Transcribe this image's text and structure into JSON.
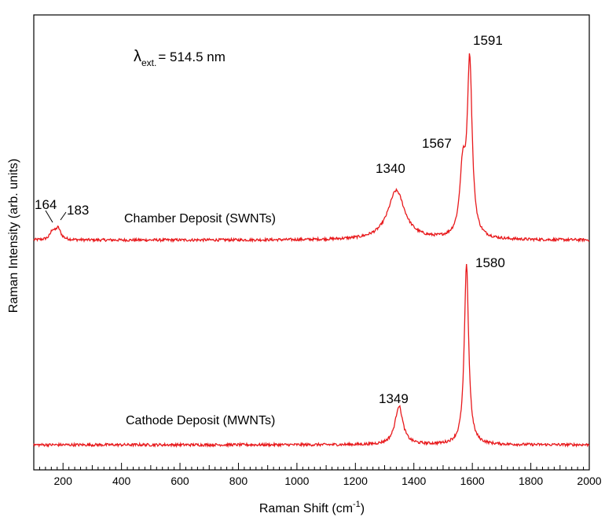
{
  "chart_data": {
    "type": "line",
    "xlabel_main": "Raman Shift (cm",
    "xlabel_sup": "-1",
    "xlabel_end": ")",
    "ylabel": "Raman Intensity (arb. units)",
    "xlim": [
      100,
      2000
    ],
    "ylim": [
      0,
      1
    ],
    "x_ticks": [
      200,
      400,
      600,
      800,
      1000,
      1200,
      1400,
      1600,
      1800,
      2000
    ],
    "x_tick_labels": [
      "200",
      "400",
      "600",
      "800",
      "1000",
      "1200",
      "1400",
      "1600",
      "1800",
      "2000"
    ],
    "y_tick_labels_shown": false,
    "grid": false,
    "line_color": "#e8191c",
    "excitation": {
      "symbol": "λ",
      "subscript": "ext.",
      "value": "= 514.5 nm"
    },
    "series": [
      {
        "name": "Chamber Deposit (SWNTs)",
        "baseline": 0.505,
        "noise": 0.003,
        "peaks": [
          {
            "x": 164,
            "height": 0.018,
            "width": 9
          },
          {
            "x": 183,
            "height": 0.025,
            "width": 11
          },
          {
            "x": 1340,
            "height": 0.108,
            "width": 35
          },
          {
            "x": 1567,
            "height": 0.14,
            "width": 12
          },
          {
            "x": 1591,
            "height": 0.38,
            "width": 10
          }
        ],
        "peak_labels": [
          "164",
          "183",
          "1340",
          "1567",
          "1591"
        ]
      },
      {
        "name": "Cathode Deposit (MWNTs)",
        "baseline": 0.055,
        "noise": 0.003,
        "peaks": [
          {
            "x": 1349,
            "height": 0.085,
            "width": 16
          },
          {
            "x": 1580,
            "height": 0.395,
            "width": 9
          }
        ],
        "peak_labels": [
          "1349",
          "1580"
        ]
      }
    ]
  }
}
